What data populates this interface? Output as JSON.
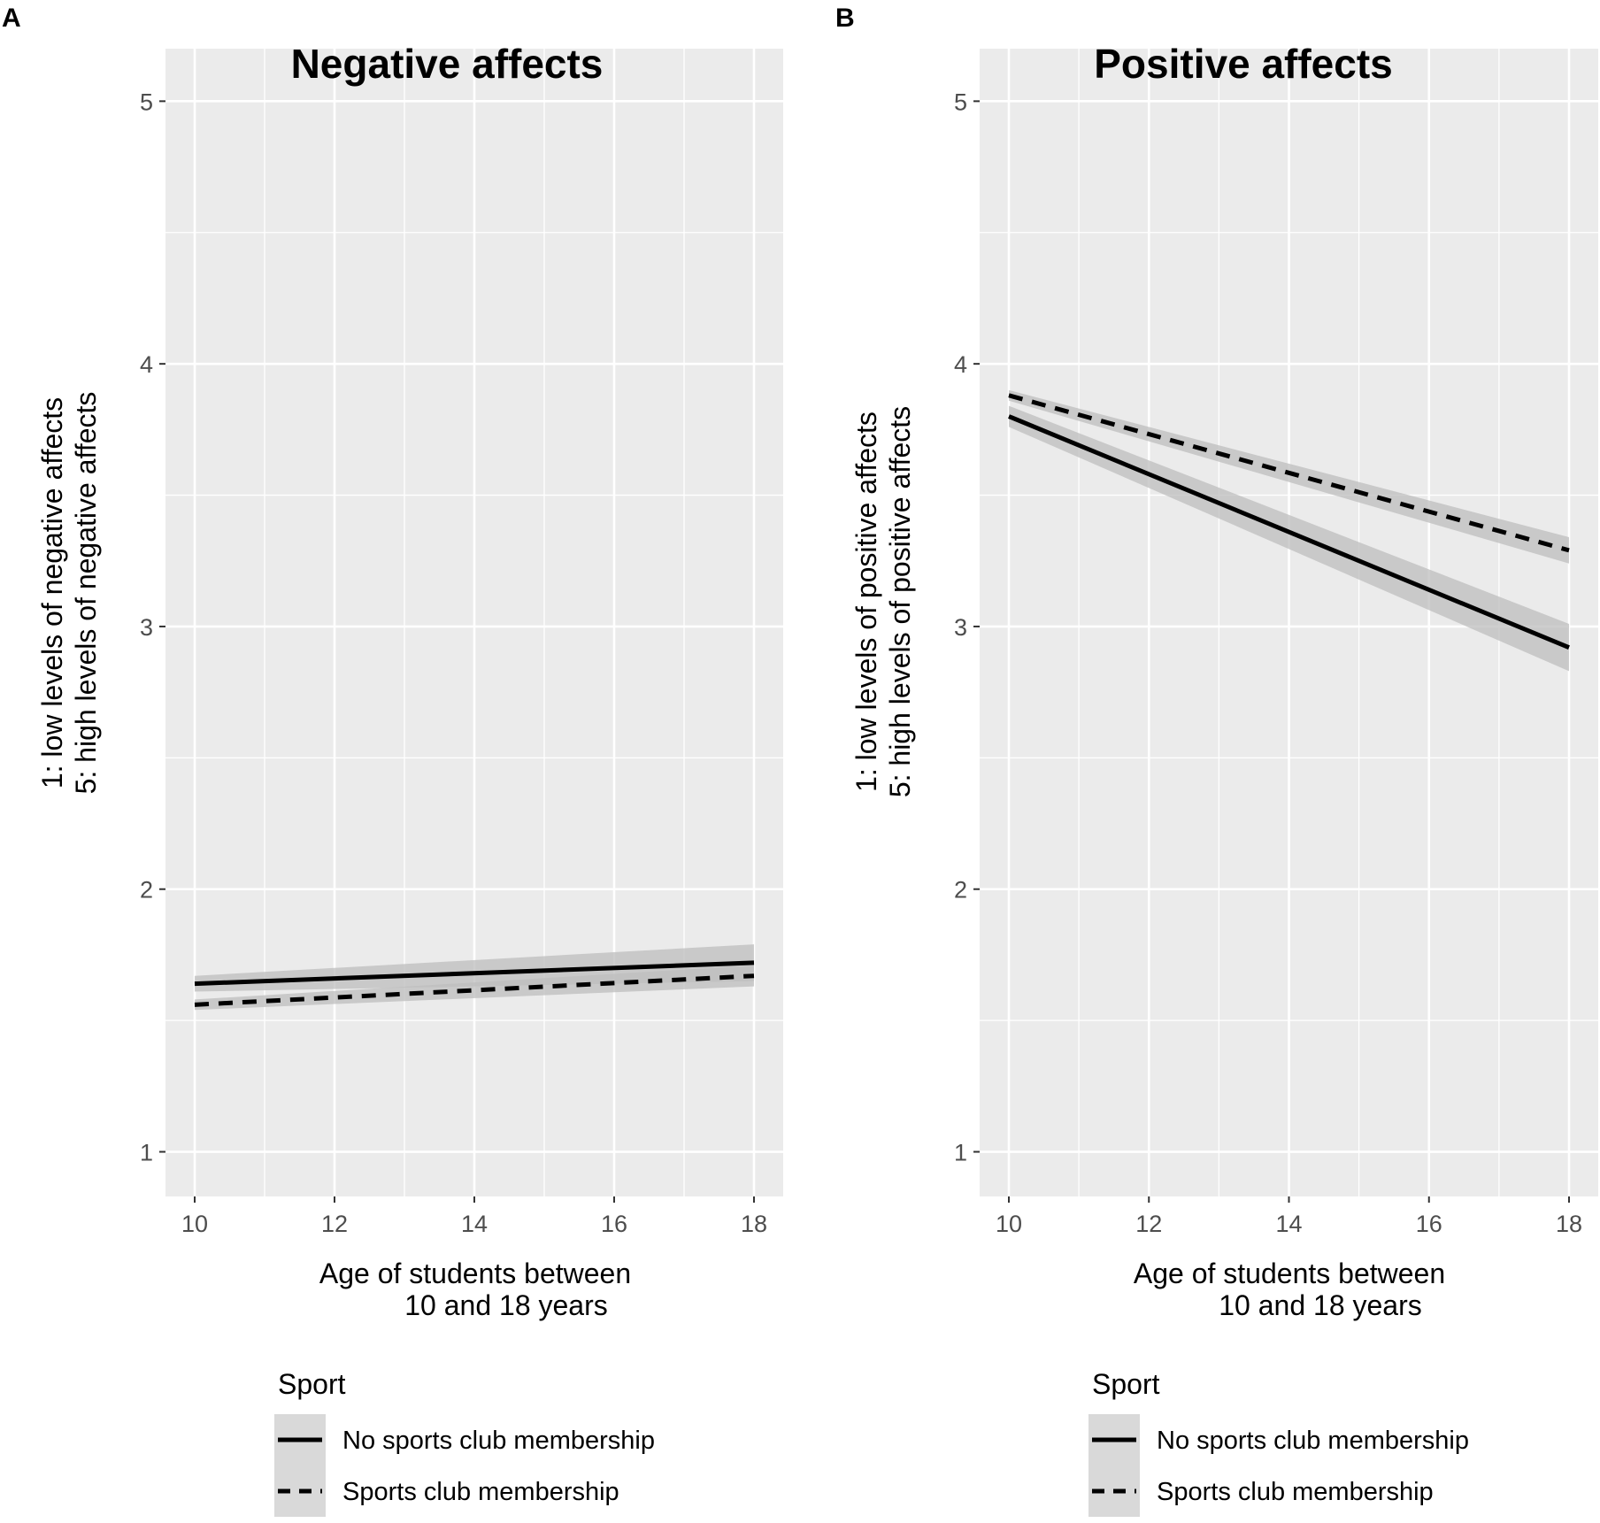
{
  "chart_data": [
    {
      "panel": "A",
      "type": "line",
      "title": "Negative affects",
      "xlabel": [
        "Age of students between",
        "10 and 18 years"
      ],
      "ylabel": [
        "1: low levels of negative affects",
        "5: high levels of negative affects"
      ],
      "xlim": [
        10,
        18
      ],
      "ylim": [
        1,
        5
      ],
      "xticks": [
        10,
        12,
        14,
        16,
        18
      ],
      "yticks": [
        1,
        2,
        3,
        4,
        5
      ],
      "series": [
        {
          "name": "No sports club membership",
          "style": "solid",
          "x": [
            10,
            18
          ],
          "y": [
            1.64,
            1.72
          ],
          "ci_low": [
            1.61,
            1.65
          ],
          "ci_high": [
            1.67,
            1.79
          ]
        },
        {
          "name": "Sports club membership",
          "style": "dashed",
          "x": [
            10,
            18
          ],
          "y": [
            1.56,
            1.67
          ],
          "ci_low": [
            1.54,
            1.63
          ],
          "ci_high": [
            1.58,
            1.71
          ]
        }
      ],
      "legend": {
        "title": "Sport",
        "entries": [
          "No sports club membership",
          "Sports club membership"
        ],
        "position": "bottom"
      }
    },
    {
      "panel": "B",
      "type": "line",
      "title": "Positive affects",
      "xlabel": [
        "Age of students between",
        "10 and 18 years"
      ],
      "ylabel": [
        "1: low levels of positive affects",
        "5: high levels of positive affects"
      ],
      "xlim": [
        10,
        18
      ],
      "ylim": [
        1,
        5
      ],
      "xticks": [
        10,
        12,
        14,
        16,
        18
      ],
      "yticks": [
        1,
        2,
        3,
        4,
        5
      ],
      "series": [
        {
          "name": "No sports club membership",
          "style": "solid",
          "x": [
            10,
            18
          ],
          "y": [
            3.8,
            2.92
          ],
          "ci_low": [
            3.76,
            2.83
          ],
          "ci_high": [
            3.84,
            3.01
          ]
        },
        {
          "name": "Sports club membership",
          "style": "dashed",
          "x": [
            10,
            18
          ],
          "y": [
            3.88,
            3.29
          ],
          "ci_low": [
            3.86,
            3.24
          ],
          "ci_high": [
            3.9,
            3.34
          ]
        }
      ],
      "legend": {
        "title": "Sport",
        "entries": [
          "No sports club membership",
          "Sports club membership"
        ],
        "position": "bottom"
      }
    }
  ],
  "colors": {
    "panel_bg": "#ebebeb",
    "grid": "#ffffff",
    "ribbon": "#bdbdbd",
    "line": "#000000",
    "legend_key_bg": "#d9d9d9"
  }
}
